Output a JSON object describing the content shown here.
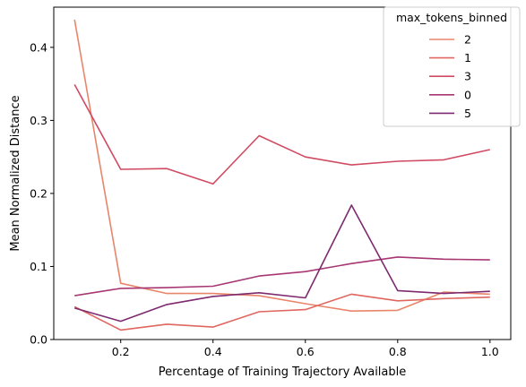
{
  "chart_data": {
    "type": "line",
    "xlabel": "Percentage of Training Trajectory Available",
    "ylabel": "Mean Normalized Distance",
    "xlim": [
      0.055,
      1.045
    ],
    "ylim": [
      0.0,
      0.455
    ],
    "xticks": [
      0.2,
      0.4,
      0.6,
      0.8,
      1.0
    ],
    "xtick_labels": [
      "0.2",
      "0.4",
      "0.6",
      "0.8",
      "1.0"
    ],
    "yticks": [
      0.0,
      0.1,
      0.2,
      0.3,
      0.4
    ],
    "ytick_labels": [
      "0.0",
      "0.1",
      "0.2",
      "0.3",
      "0.4"
    ],
    "grid": false,
    "legend": {
      "title": "max_tokens_binned",
      "placement": "top-right"
    },
    "x": [
      0.1,
      0.2,
      0.3,
      0.4,
      0.5,
      0.6,
      0.7,
      0.8,
      0.9,
      1.0
    ],
    "series": [
      {
        "name": "2",
        "color": "#e8856a",
        "values": [
          0.438,
          0.077,
          0.063,
          0.063,
          0.06,
          0.049,
          0.039,
          0.04,
          0.065,
          0.062
        ]
      },
      {
        "name": "1",
        "color": "#e06660",
        "values": [
          0.045,
          0.013,
          0.021,
          0.017,
          0.038,
          0.041,
          0.062,
          0.053,
          0.056,
          0.058
        ]
      },
      {
        "name": "3",
        "color": "#d04b62",
        "values": [
          0.349,
          0.233,
          0.234,
          0.213,
          0.279,
          0.25,
          0.239,
          0.244,
          0.246,
          0.26
        ]
      },
      {
        "name": "0",
        "color": "#a73772",
        "values": [
          0.06,
          0.07,
          0.071,
          0.073,
          0.087,
          0.093,
          0.104,
          0.113,
          0.11,
          0.109
        ]
      },
      {
        "name": "5",
        "color": "#7d2a6f",
        "values": [
          0.043,
          0.025,
          0.048,
          0.059,
          0.064,
          0.057,
          0.184,
          0.067,
          0.063,
          0.066
        ]
      }
    ]
  }
}
